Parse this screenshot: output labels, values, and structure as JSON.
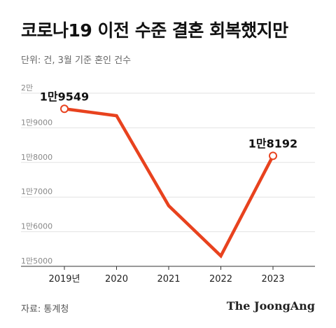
{
  "title": "코로나19 이전 수준 결혼 회복했지만",
  "subtitle": "단위: 건, 3월 기준 혼인 건수",
  "source": "자료: 통계청",
  "brand": "The JoongAng",
  "chart_data": {
    "type": "line",
    "categories": [
      "2019년",
      "2020",
      "2021",
      "2022",
      "2023"
    ],
    "series": [
      {
        "values": [
          19549,
          19350,
          16750,
          15300,
          18192
        ]
      }
    ],
    "y_ticks": [
      {
        "value": 20000,
        "label": "2만"
      },
      {
        "value": 19000,
        "label": "1만9000"
      },
      {
        "value": 18000,
        "label": "1만8000"
      },
      {
        "value": 17000,
        "label": "1만7000"
      },
      {
        "value": 16000,
        "label": "1만6000"
      },
      {
        "value": 15000,
        "label": "1만5000"
      }
    ],
    "annotations": [
      {
        "index": 0,
        "label": "1만9549"
      },
      {
        "index": 4,
        "label": "1만8192"
      }
    ],
    "ylim": [
      15000,
      20000
    ],
    "grid": true,
    "line_color": "#e8421e",
    "marker_fill": "#ffffff"
  }
}
